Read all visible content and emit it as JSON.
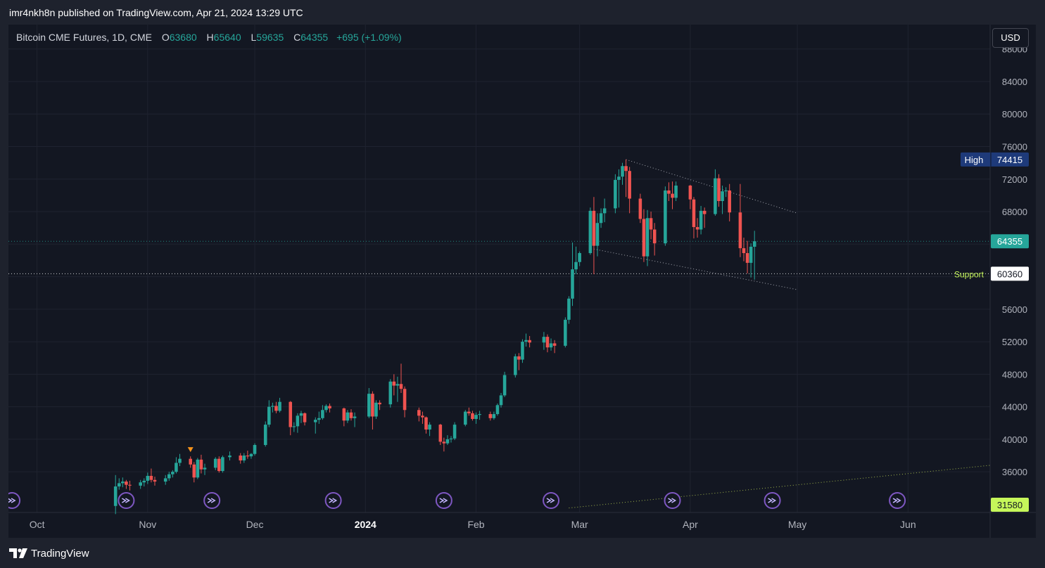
{
  "header": {
    "published_line": "imr4nkh8n published on TradingView.com, Apr 21, 2024 13:29 UTC"
  },
  "legend": {
    "symbol": "Bitcoin CME Futures, 1D, CME",
    "open_label": "O",
    "open": "63680",
    "high_label": "H",
    "high": "65640",
    "low_label": "L",
    "low": "59635",
    "close_label": "C",
    "close": "64355",
    "change": "+695 (+1.09%)"
  },
  "currency_button": "USD",
  "footer": {
    "brand": "TradingView"
  },
  "colors": {
    "up": "#26a69a",
    "down": "#ef5350",
    "background": "#131722",
    "grid": "#1f2330",
    "support": "#c6f75a",
    "high_badge": "#1e3a7a",
    "event_icon": "#7e57c2"
  },
  "chart_data": {
    "type": "candlestick",
    "title": "Bitcoin CME Futures, 1D, CME",
    "currency": "USD",
    "ylim": [
      31000,
      91000
    ],
    "y_ticks": [
      36000,
      40000,
      44000,
      48000,
      52000,
      56000,
      60000,
      64000,
      68000,
      72000,
      76000,
      80000,
      84000,
      88000
    ],
    "y_tick_labels": [
      "36000",
      "40000",
      "44000",
      "48000",
      "52000",
      "56000",
      "60000",
      "64000",
      "68000",
      "72000",
      "76000",
      "80000",
      "84000",
      "88000"
    ],
    "x_range": [
      "2023-09-23",
      "2024-06-24"
    ],
    "x_ticks": [
      {
        "date": "2023-10-01",
        "label": "Oct",
        "bold": false
      },
      {
        "date": "2023-11-01",
        "label": "Nov",
        "bold": false
      },
      {
        "date": "2023-12-01",
        "label": "Dec",
        "bold": false
      },
      {
        "date": "2024-01-01",
        "label": "2024",
        "bold": true
      },
      {
        "date": "2024-02-01",
        "label": "Feb",
        "bold": false
      },
      {
        "date": "2024-03-01",
        "label": "Mar",
        "bold": false
      },
      {
        "date": "2024-04-01",
        "label": "Apr",
        "bold": false
      },
      {
        "date": "2024-05-01",
        "label": "May",
        "bold": false
      },
      {
        "date": "2024-06-01",
        "label": "Jun",
        "bold": false
      }
    ],
    "candles": [
      [
        "2023-10-23",
        31800,
        35600,
        30800,
        34200
      ],
      [
        "2023-10-24",
        34200,
        35200,
        33800,
        34600
      ],
      [
        "2023-10-25",
        34600,
        35300,
        34100,
        34800
      ],
      [
        "2023-10-26",
        34800,
        35000,
        33900,
        34400
      ],
      [
        "2023-10-27",
        34400,
        34900,
        33700,
        34300
      ],
      [
        "2023-10-30",
        34300,
        35000,
        33900,
        34700
      ],
      [
        "2023-10-31",
        34700,
        35200,
        34200,
        34900
      ],
      [
        "2023-11-01",
        34900,
        35900,
        34500,
        35500
      ],
      [
        "2023-11-02",
        35500,
        36400,
        34700,
        35000
      ],
      [
        "2023-11-03",
        35000,
        35400,
        34300,
        34800
      ],
      [
        "2023-11-06",
        34800,
        35600,
        34400,
        35200
      ],
      [
        "2023-11-07",
        35200,
        36000,
        34900,
        35700
      ],
      [
        "2023-11-08",
        35700,
        36200,
        35300,
        36000
      ],
      [
        "2023-11-09",
        36000,
        37800,
        35800,
        37100
      ],
      [
        "2023-11-10",
        37100,
        38200,
        36700,
        37600
      ],
      [
        "2023-11-13",
        37600,
        37900,
        36500,
        36900
      ],
      [
        "2023-11-14",
        36900,
        37200,
        34700,
        35300
      ],
      [
        "2023-11-15",
        35300,
        37700,
        35100,
        37500
      ],
      [
        "2023-11-16",
        37500,
        38100,
        35800,
        36300
      ],
      [
        "2023-11-17",
        36300,
        37000,
        35600,
        36500
      ],
      [
        "2023-11-20",
        36500,
        37800,
        36200,
        37600
      ],
      [
        "2023-11-21",
        37600,
        37900,
        35900,
        36100
      ],
      [
        "2023-11-22",
        36100,
        38000,
        35900,
        37800
      ],
      [
        "2023-11-24",
        37800,
        38500,
        37400,
        38000
      ],
      [
        "2023-11-27",
        38000,
        38300,
        37000,
        37400
      ],
      [
        "2023-11-28",
        37400,
        38300,
        37100,
        38000
      ],
      [
        "2023-11-29",
        38000,
        38600,
        37600,
        37900
      ],
      [
        "2023-11-30",
        37900,
        38300,
        37600,
        38200
      ],
      [
        "2023-12-01",
        38200,
        39500,
        38000,
        39300
      ],
      [
        "2023-12-04",
        39300,
        42200,
        39100,
        41800
      ],
      [
        "2023-12-05",
        41800,
        44800,
        41500,
        44000
      ],
      [
        "2023-12-06",
        44000,
        44500,
        43300,
        44100
      ],
      [
        "2023-12-07",
        44100,
        44600,
        43200,
        43500
      ],
      [
        "2023-12-08",
        43500,
        45100,
        43300,
        44600
      ],
      [
        "2023-12-11",
        44600,
        44700,
        40500,
        41500
      ],
      [
        "2023-12-12",
        41500,
        42100,
        40900,
        41600
      ],
      [
        "2023-12-13",
        41600,
        43200,
        40800,
        42900
      ],
      [
        "2023-12-14",
        42900,
        43500,
        42000,
        43200
      ],
      [
        "2023-12-15",
        43200,
        43300,
        41700,
        42100
      ],
      [
        "2023-12-18",
        42100,
        42700,
        40700,
        42400
      ],
      [
        "2023-12-19",
        42400,
        43400,
        41900,
        42600
      ],
      [
        "2023-12-20",
        42600,
        44200,
        42400,
        43600
      ],
      [
        "2023-12-21",
        43600,
        44300,
        43300,
        44100
      ],
      [
        "2023-12-22",
        44100,
        44400,
        43300,
        43800
      ],
      [
        "2023-12-26",
        43800,
        43900,
        41600,
        42300
      ],
      [
        "2023-12-27",
        42300,
        43600,
        42000,
        43300
      ],
      [
        "2023-12-28",
        43300,
        43700,
        42300,
        42600
      ],
      [
        "2023-12-29",
        42600,
        43300,
        41500,
        42800
      ],
      [
        "2024-01-02",
        42800,
        46300,
        42600,
        45600
      ],
      [
        "2024-01-03",
        45600,
        45900,
        41200,
        42800
      ],
      [
        "2024-01-04",
        42800,
        44800,
        42500,
        44500
      ],
      [
        "2024-01-05",
        44500,
        44800,
        43600,
        44300
      ],
      [
        "2024-01-08",
        44300,
        47400,
        43900,
        47100
      ],
      [
        "2024-01-09",
        47100,
        48000,
        45400,
        46600
      ],
      [
        "2024-01-10",
        46600,
        47700,
        44600,
        46800
      ],
      [
        "2024-01-11",
        46800,
        49300,
        45700,
        46200
      ],
      [
        "2024-01-12",
        46200,
        46500,
        42700,
        43600
      ],
      [
        "2024-01-16",
        43600,
        43900,
        42200,
        42900
      ],
      [
        "2024-01-17",
        42900,
        43400,
        41900,
        42700
      ],
      [
        "2024-01-18",
        42700,
        42800,
        40700,
        41200
      ],
      [
        "2024-01-19",
        41200,
        42100,
        40400,
        41800
      ],
      [
        "2024-01-22",
        41800,
        41900,
        39300,
        39700
      ],
      [
        "2024-01-23",
        39700,
        40200,
        38500,
        39500
      ],
      [
        "2024-01-24",
        39500,
        40500,
        39300,
        40000
      ],
      [
        "2024-01-25",
        40000,
        40400,
        39600,
        40100
      ],
      [
        "2024-01-26",
        40100,
        42100,
        39900,
        41800
      ],
      [
        "2024-01-29",
        41800,
        43600,
        41600,
        43400
      ],
      [
        "2024-01-30",
        43400,
        43900,
        42900,
        43200
      ],
      [
        "2024-01-31",
        43200,
        43500,
        42300,
        42500
      ],
      [
        "2024-02-01",
        42500,
        43300,
        41900,
        43000
      ],
      [
        "2024-02-02",
        43000,
        43500,
        42400,
        43100
      ],
      [
        "2024-02-05",
        43100,
        43400,
        42300,
        42600
      ],
      [
        "2024-02-06",
        42600,
        43400,
        42400,
        43100
      ],
      [
        "2024-02-07",
        43100,
        44400,
        42900,
        44200
      ],
      [
        "2024-02-08",
        44200,
        45700,
        43900,
        45400
      ],
      [
        "2024-02-09",
        45400,
        48300,
        45200,
        47900
      ],
      [
        "2024-02-12",
        47900,
        50500,
        47600,
        50200
      ],
      [
        "2024-02-13",
        50200,
        50600,
        48500,
        49800
      ],
      [
        "2024-02-14",
        49800,
        52300,
        49400,
        52000
      ],
      [
        "2024-02-15",
        52000,
        53000,
        51400,
        52200
      ],
      [
        "2024-02-16",
        52200,
        52700,
        51300,
        51900
      ],
      [
        "2024-02-20",
        51900,
        53200,
        51000,
        52600
      ],
      [
        "2024-02-21",
        52600,
        52900,
        50700,
        51300
      ],
      [
        "2024-02-22",
        51300,
        52400,
        50900,
        51800
      ],
      [
        "2024-02-23",
        51800,
        52200,
        50600,
        51500
      ],
      [
        "2024-02-26",
        51500,
        55000,
        51300,
        54700
      ],
      [
        "2024-02-27",
        54700,
        57600,
        54200,
        57300
      ],
      [
        "2024-02-28",
        57300,
        64200,
        56400,
        60900
      ],
      [
        "2024-02-29",
        60900,
        63700,
        60300,
        61800
      ],
      [
        "2024-03-01",
        61800,
        63100,
        61300,
        62900
      ],
      [
        "2024-03-04",
        62900,
        68500,
        62700,
        68100
      ],
      [
        "2024-03-05",
        68100,
        69800,
        60300,
        63800
      ],
      [
        "2024-03-06",
        63800,
        67800,
        62500,
        66600
      ],
      [
        "2024-03-07",
        66600,
        68400,
        66000,
        67800
      ],
      [
        "2024-03-08",
        67800,
        69600,
        66700,
        68400
      ],
      [
        "2024-03-11",
        68400,
        72600,
        67800,
        71900
      ],
      [
        "2024-03-12",
        71900,
        73200,
        68500,
        72300
      ],
      [
        "2024-03-13",
        72300,
        74000,
        71300,
        73600
      ],
      [
        "2024-03-14",
        73600,
        74415,
        69800,
        73000
      ],
      [
        "2024-03-15",
        73000,
        73500,
        67800,
        69600
      ],
      [
        "2024-03-18",
        69600,
        70200,
        66600,
        67100
      ],
      [
        "2024-03-19",
        67100,
        68300,
        61800,
        62500
      ],
      [
        "2024-03-20",
        62500,
        68200,
        61300,
        67200
      ],
      [
        "2024-03-21",
        67200,
        68000,
        64600,
        65800
      ],
      [
        "2024-03-22",
        65800,
        66600,
        62600,
        64100
      ],
      [
        "2024-03-25",
        64100,
        71100,
        63800,
        70600
      ],
      [
        "2024-03-26",
        70600,
        71600,
        69300,
        70200
      ],
      [
        "2024-03-27",
        70200,
        71700,
        68300,
        69700
      ],
      [
        "2024-03-28",
        69700,
        71700,
        69300,
        71200
      ],
      [
        "2024-04-01",
        71200,
        71300,
        68300,
        69500
      ],
      [
        "2024-04-02",
        69500,
        69800,
        64700,
        66100
      ],
      [
        "2024-04-03",
        66100,
        67200,
        64800,
        65800
      ],
      [
        "2024-04-04",
        65800,
        68700,
        65200,
        68100
      ],
      [
        "2024-04-05",
        68100,
        68500,
        66000,
        67700
      ],
      [
        "2024-04-08",
        67700,
        73200,
        67500,
        72100
      ],
      [
        "2024-04-09",
        72100,
        72600,
        68600,
        69300
      ],
      [
        "2024-04-10",
        69300,
        71200,
        67700,
        70500
      ],
      [
        "2024-04-11",
        70500,
        71000,
        69800,
        70600
      ],
      [
        "2024-04-12",
        70600,
        71400,
        66800,
        67900
      ],
      [
        "2024-04-15",
        67900,
        71400,
        62400,
        63500
      ],
      [
        "2024-04-16",
        63500,
        64800,
        61900,
        62900
      ],
      [
        "2024-04-17",
        62900,
        64400,
        60400,
        61700
      ],
      [
        "2024-04-18",
        61700,
        64100,
        59900,
        63680
      ],
      [
        "2024-04-19",
        63680,
        65640,
        59635,
        64355
      ]
    ],
    "trendlines": [
      {
        "from": [
          "2024-03-14",
          74400
        ],
        "to": [
          "2024-05-01",
          67800
        ],
        "style": "dotted"
      },
      {
        "from": [
          "2024-03-05",
          63400
        ],
        "to": [
          "2024-05-01",
          58400
        ],
        "style": "dotted"
      },
      {
        "from": [
          "2024-02-27",
          31550
        ],
        "to": [
          "2024-06-24",
          36800
        ],
        "style": "dotted",
        "color": "#9eb34a"
      }
    ],
    "horizontal_lines": [
      {
        "value": 64355,
        "label": "64355",
        "color": "#26a69a"
      },
      {
        "value": 60360,
        "label": "60360",
        "title": "Support",
        "color": "#ffffff"
      }
    ],
    "price_badges": [
      {
        "value": 74415,
        "title": "High",
        "label": "74415"
      },
      {
        "value": 31580,
        "label": "31580"
      }
    ],
    "marker": {
      "date": "2023-11-13",
      "price": 38600,
      "shape": "triangle-down",
      "color": "#f7931a"
    },
    "event_icons": [
      "2023-09-24",
      "2023-10-26",
      "2023-11-19",
      "2023-12-23",
      "2024-01-23",
      "2024-02-22",
      "2024-03-27",
      "2024-04-24",
      "2024-05-29"
    ]
  }
}
